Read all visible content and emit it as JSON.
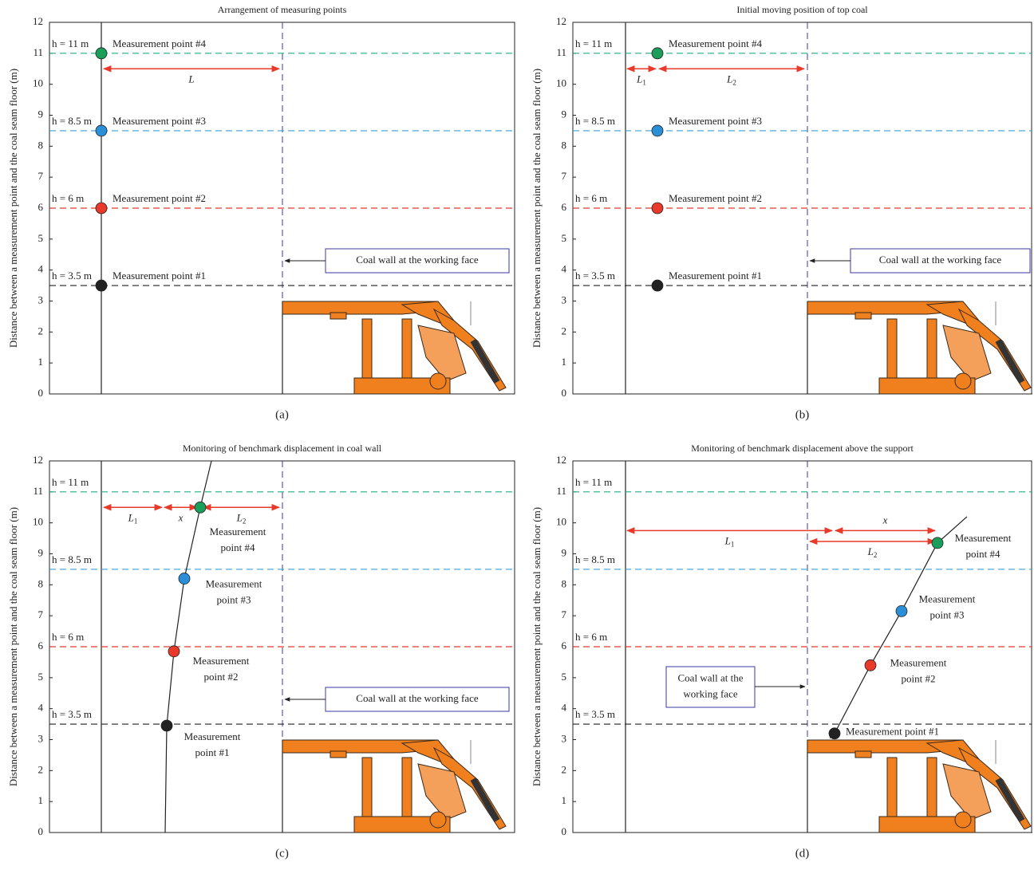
{
  "ylabel": "Distance between a measurement point and the coal seam floor (m)",
  "ylim": [
    0,
    12
  ],
  "yticks": [
    0,
    1,
    2,
    3,
    4,
    5,
    6,
    7,
    8,
    9,
    10,
    11,
    12
  ],
  "panels": [
    {
      "title": "Arrangement of measuring points",
      "caption": "(a)",
      "levels": [
        {
          "value": 11,
          "label": "h = 11 m",
          "color": "#1fae84"
        },
        {
          "value": 8.5,
          "label": "h = 8.5 m",
          "color": "#3a9fd6"
        },
        {
          "value": 6,
          "label": "h = 6 m",
          "color": "#e8392a"
        },
        {
          "value": 3.5,
          "label": "h = 3.5 m",
          "color": "#222222"
        }
      ],
      "points": [
        {
          "y": 11,
          "lines": [
            "Measurement point #4"
          ],
          "color": "#1a9e5a"
        },
        {
          "y": 8.5,
          "lines": [
            "Measurement point #3"
          ],
          "color": "#2a8fd6"
        },
        {
          "y": 6,
          "lines": [
            "Measurement point #2"
          ],
          "color": "#e8392a"
        },
        {
          "y": 3.5,
          "lines": [
            "Measurement point #1"
          ],
          "color": "#222222"
        }
      ],
      "wall_label": [
        "Coal wall at the working face"
      ],
      "dimensions": [
        {
          "main": "L"
        }
      ]
    },
    {
      "title": "Initial moving position of top coal",
      "caption": "(b)",
      "levels": [
        {
          "value": 11,
          "label": "h = 11 m",
          "color": "#1fae84"
        },
        {
          "value": 8.5,
          "label": "h = 8.5 m",
          "color": "#3a9fd6"
        },
        {
          "value": 6,
          "label": "h = 6 m",
          "color": "#e8392a"
        },
        {
          "value": 3.5,
          "label": "h = 3.5 m",
          "color": "#222222"
        }
      ],
      "points": [
        {
          "y": 11,
          "lines": [
            "Measurement point #4"
          ],
          "color": "#1a9e5a"
        },
        {
          "y": 8.5,
          "lines": [
            "Measurement point #3"
          ],
          "color": "#2a8fd6"
        },
        {
          "y": 6,
          "lines": [
            "Measurement point #2"
          ],
          "color": "#e8392a"
        },
        {
          "y": 3.5,
          "lines": [
            "Measurement point #1"
          ],
          "color": "#222222"
        }
      ],
      "wall_label": [
        "Coal wall at the working face"
      ],
      "dimensions": [
        {
          "main": "L",
          "sub": "1"
        },
        {
          "main": "L",
          "sub": "2"
        }
      ]
    },
    {
      "title": "Monitoring of benchmark displacement in coal wall",
      "caption": "(c)",
      "levels": [
        {
          "value": 11,
          "label": "h = 11 m",
          "color": "#1fae84"
        },
        {
          "value": 8.5,
          "label": "h = 8.5 m",
          "color": "#3a9fd6"
        },
        {
          "value": 6,
          "label": "h = 6 m",
          "color": "#e8392a"
        },
        {
          "value": 3.5,
          "label": "h = 3.5 m",
          "color": "#222222"
        }
      ],
      "points": [
        {
          "y": 10.5,
          "lines": [
            "Measurement",
            "point #4"
          ],
          "color": "#1a9e5a"
        },
        {
          "y": 8.2,
          "lines": [
            "Measurement",
            "point #3"
          ],
          "color": "#2a8fd6"
        },
        {
          "y": 5.85,
          "lines": [
            "Measurement",
            "point #2"
          ],
          "color": "#e8392a"
        },
        {
          "y": 3.45,
          "lines": [
            "Measurement",
            "point #1"
          ],
          "color": "#222222"
        }
      ],
      "wall_label": [
        "Coal wall at the working face"
      ],
      "dimensions": [
        {
          "main": "L",
          "sub": "1"
        },
        {
          "main": "x"
        },
        {
          "main": "L",
          "sub": "2"
        }
      ]
    },
    {
      "title": "Monitoring of benchmark displacement above the support",
      "caption": "(d)",
      "levels": [
        {
          "value": 11,
          "label": "h = 11 m",
          "color": "#1fae84"
        },
        {
          "value": 8.5,
          "label": "h = 8.5 m",
          "color": "#3a9fd6"
        },
        {
          "value": 6,
          "label": "h = 6 m",
          "color": "#e8392a"
        },
        {
          "value": 3.5,
          "label": "h = 3.5 m",
          "color": "#222222"
        }
      ],
      "points": [
        {
          "y": 9.35,
          "lines": [
            "Measurement",
            "point #4"
          ],
          "color": "#1a9e5a"
        },
        {
          "y": 7.15,
          "lines": [
            "Measurement",
            "point #3"
          ],
          "color": "#2a8fd6"
        },
        {
          "y": 5.4,
          "lines": [
            "Measurement",
            "point #2"
          ],
          "color": "#e8392a"
        },
        {
          "y": 3.2,
          "lines": [
            "Measurement point #1"
          ],
          "color": "#222222"
        }
      ],
      "wall_label": [
        "Coal wall at the",
        "working face"
      ],
      "dimensions": [
        {
          "main": "L",
          "sub": "1"
        },
        {
          "main": "x"
        },
        {
          "main": "L",
          "sub": "2"
        }
      ]
    }
  ]
}
